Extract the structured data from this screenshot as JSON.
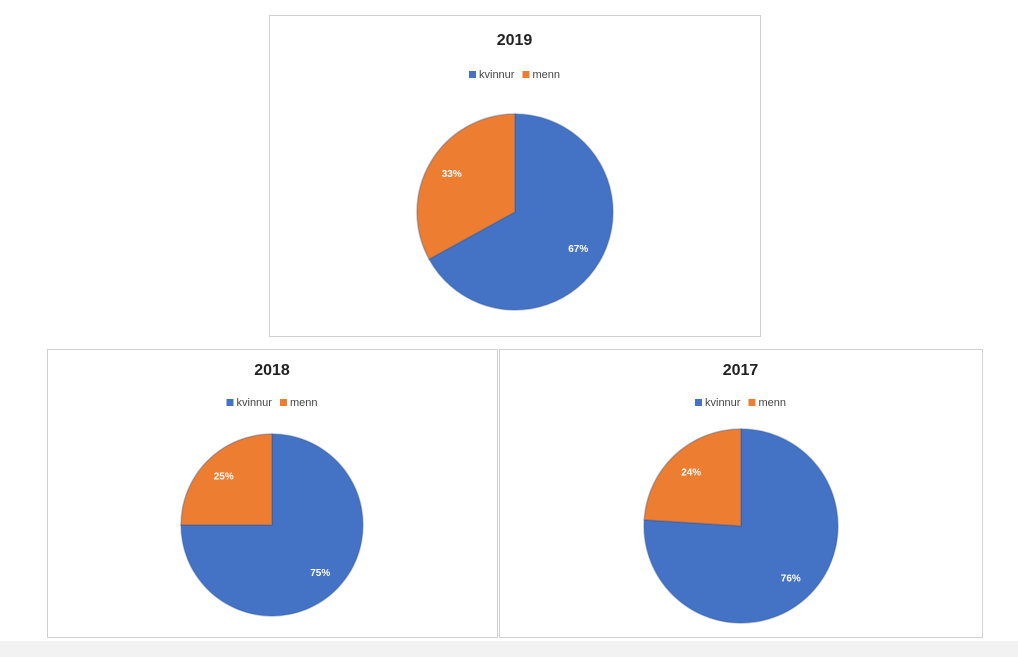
{
  "chart_data": [
    {
      "type": "pie",
      "title": "2019",
      "categories": [
        "kvinnur",
        "menn"
      ],
      "values": [
        67,
        33
      ],
      "value_labels": [
        "67%",
        "33%"
      ],
      "colors": [
        "#4472c4",
        "#ed7d31"
      ]
    },
    {
      "type": "pie",
      "title": "2018",
      "categories": [
        "kvinnur",
        "menn"
      ],
      "values": [
        75,
        25
      ],
      "value_labels": [
        "75%",
        "25%"
      ],
      "colors": [
        "#4472c4",
        "#ed7d31"
      ]
    },
    {
      "type": "pie",
      "title": "2017",
      "categories": [
        "kvinnur",
        "menn"
      ],
      "values": [
        76,
        24
      ],
      "value_labels": [
        "76%",
        "24%"
      ],
      "colors": [
        "#4472c4",
        "#ed7d31"
      ]
    }
  ]
}
